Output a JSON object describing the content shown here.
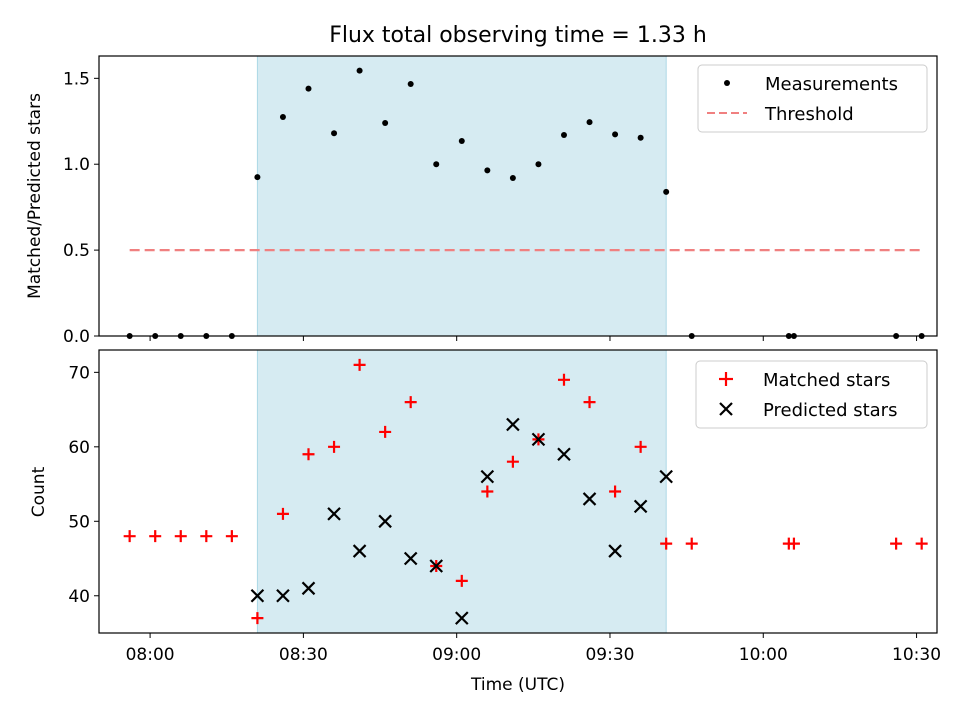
{
  "chart_data": [
    {
      "type": "scatter",
      "title": "Flux total observing time = 1.33 h",
      "xlabel": "",
      "ylabel": "Matched/Predicted stars",
      "xlim": [
        "07:50",
        "10:34"
      ],
      "ylim": [
        0,
        1.63
      ],
      "yticks": [
        0.0,
        0.5,
        1.0,
        1.5
      ],
      "ytick_labels": [
        "0.0",
        "0.5",
        "1.0",
        "1.5"
      ],
      "shaded_span": {
        "start": "08:21",
        "end": "09:41",
        "color": "#add8e6"
      },
      "legend_position": "top-right",
      "series": [
        {
          "name": "Measurements",
          "marker": "dot",
          "color": "#000000",
          "points": [
            [
              "07:56",
              0.0
            ],
            [
              "08:01",
              0.0
            ],
            [
              "08:06",
              0.0
            ],
            [
              "08:11",
              0.0
            ],
            [
              "08:16",
              0.0
            ],
            [
              "08:21",
              0.925
            ],
            [
              "08:26",
              1.275
            ],
            [
              "08:31",
              1.44
            ],
            [
              "08:36",
              1.18
            ],
            [
              "08:41",
              1.545
            ],
            [
              "08:46",
              1.24
            ],
            [
              "08:51",
              1.467
            ],
            [
              "08:56",
              1.0
            ],
            [
              "09:01",
              1.135
            ],
            [
              "09:06",
              0.964
            ],
            [
              "09:11",
              0.92
            ],
            [
              "09:16",
              1.0
            ],
            [
              "09:21",
              1.17
            ],
            [
              "09:26",
              1.245
            ],
            [
              "09:31",
              1.174
            ],
            [
              "09:36",
              1.154
            ],
            [
              "09:41",
              0.839
            ],
            [
              "09:46",
              0.0
            ],
            [
              "10:05",
              0.0
            ],
            [
              "10:06",
              0.0
            ],
            [
              "10:26",
              0.0
            ],
            [
              "10:31",
              0.0
            ]
          ]
        },
        {
          "name": "Threshold",
          "marker": "dashed-line",
          "color": "#f08080",
          "points": [
            [
              "07:56",
              0.5
            ],
            [
              "10:31",
              0.5
            ]
          ]
        }
      ]
    },
    {
      "type": "scatter",
      "title": "",
      "xlabel": "Time (UTC)",
      "ylabel": "Count",
      "xlim": [
        "07:50",
        "10:34"
      ],
      "ylim": [
        35,
        73
      ],
      "yticks": [
        40,
        50,
        60,
        70
      ],
      "ytick_labels": [
        "40",
        "50",
        "60",
        "70"
      ],
      "xticks": [
        "08:00",
        "08:30",
        "09:00",
        "09:30",
        "10:00",
        "10:30"
      ],
      "xtick_labels": [
        "08:00",
        "08:30",
        "09:00",
        "09:30",
        "10:00",
        "10:30"
      ],
      "shaded_span": {
        "start": "08:21",
        "end": "09:41",
        "color": "#add8e6"
      },
      "legend_position": "top-right",
      "series": [
        {
          "name": "Matched stars",
          "marker": "plus",
          "color": "#ff0000",
          "points": [
            [
              "07:56",
              48
            ],
            [
              "08:01",
              48
            ],
            [
              "08:06",
              48
            ],
            [
              "08:11",
              48
            ],
            [
              "08:16",
              48
            ],
            [
              "08:21",
              37
            ],
            [
              "08:26",
              51
            ],
            [
              "08:31",
              59
            ],
            [
              "08:36",
              60
            ],
            [
              "08:41",
              71
            ],
            [
              "08:46",
              62
            ],
            [
              "08:51",
              66
            ],
            [
              "08:56",
              44
            ],
            [
              "09:01",
              42
            ],
            [
              "09:06",
              54
            ],
            [
              "09:11",
              58
            ],
            [
              "09:16",
              61
            ],
            [
              "09:21",
              69
            ],
            [
              "09:26",
              66
            ],
            [
              "09:31",
              54
            ],
            [
              "09:36",
              60
            ],
            [
              "09:41",
              47
            ],
            [
              "09:46",
              47
            ],
            [
              "10:05",
              47
            ],
            [
              "10:06",
              47
            ],
            [
              "10:26",
              47
            ],
            [
              "10:31",
              47
            ]
          ]
        },
        {
          "name": "Predicted stars",
          "marker": "x",
          "color": "#000000",
          "points": [
            [
              "08:21",
              40
            ],
            [
              "08:26",
              40
            ],
            [
              "08:31",
              41
            ],
            [
              "08:36",
              51
            ],
            [
              "08:41",
              46
            ],
            [
              "08:46",
              50
            ],
            [
              "08:51",
              45
            ],
            [
              "08:56",
              44
            ],
            [
              "09:01",
              37
            ],
            [
              "09:06",
              56
            ],
            [
              "09:11",
              63
            ],
            [
              "09:16",
              61
            ],
            [
              "09:21",
              59
            ],
            [
              "09:26",
              53
            ],
            [
              "09:31",
              46
            ],
            [
              "09:36",
              52
            ],
            [
              "09:41",
              56
            ]
          ]
        }
      ]
    }
  ]
}
